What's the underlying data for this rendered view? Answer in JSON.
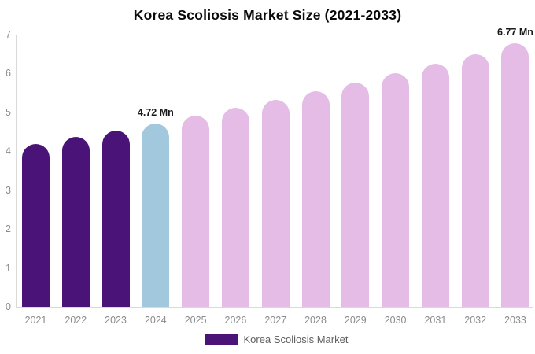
{
  "chart_data": {
    "type": "bar",
    "title": "Korea Scoliosis Market Size (2021-2033)",
    "categories": [
      "2021",
      "2022",
      "2023",
      "2024",
      "2025",
      "2026",
      "2027",
      "2028",
      "2029",
      "2030",
      "2031",
      "2032",
      "2033"
    ],
    "values": [
      4.19,
      4.36,
      4.53,
      4.72,
      4.91,
      5.11,
      5.32,
      5.54,
      5.77,
      6.0,
      6.25,
      6.5,
      6.77
    ],
    "unit": "Mn",
    "xlabel": "",
    "ylabel": "",
    "ylim": [
      0,
      7
    ],
    "yticks": [
      0,
      1,
      2,
      3,
      4,
      5,
      6,
      7
    ],
    "grid": false,
    "legend_position": "bottom",
    "legend_entries": [
      "Korea Scoliosis Market"
    ],
    "annotations": [
      {
        "category": "2024",
        "text": "4.72 Mn"
      },
      {
        "category": "2033",
        "text": "6.77 Mn"
      }
    ],
    "bar_colors": [
      "#4A1377",
      "#4A1377",
      "#4A1377",
      "#A2C8DE",
      "#E4BCE6",
      "#E4BCE6",
      "#E4BCE6",
      "#E4BCE6",
      "#E4BCE6",
      "#E4BCE6",
      "#E4BCE6",
      "#E4BCE6",
      "#E4BCE6"
    ]
  },
  "legend": {
    "label": "Korea Scoliosis Market",
    "swatch_color": "#4A1377"
  },
  "colors": {
    "historical_bar": "#4A1377",
    "base_year_bar": "#A2C8DE",
    "forecast_bar": "#E4BCE6",
    "axis_line": "#D9D9D9",
    "tick_label": "#8B8B8B",
    "annotation_text": "#1A1A1A",
    "legend_text": "#5F5F5F",
    "title_text": "#0A0A0A",
    "background": "#FFFFFF"
  }
}
